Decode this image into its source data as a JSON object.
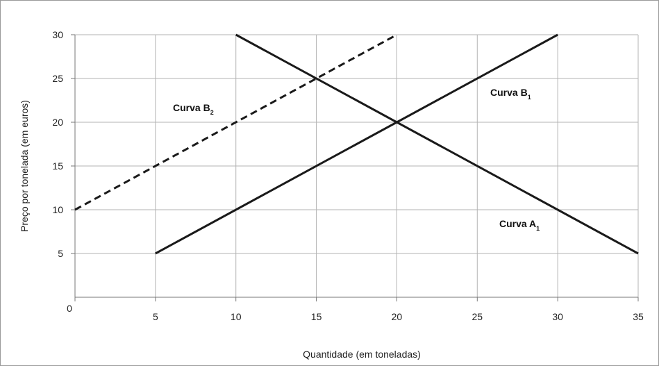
{
  "chart_data": {
    "type": "line",
    "xlabel": "Quantidade (em toneladas)",
    "ylabel": "Preço por tonelada (em euros)",
    "xlim": [
      0,
      35
    ],
    "ylim": [
      0,
      30
    ],
    "x_ticks": [
      "0",
      "5",
      "10",
      "15",
      "20",
      "25",
      "30",
      "35"
    ],
    "y_ticks": [
      "5",
      "10",
      "15",
      "20",
      "25",
      "30"
    ],
    "grid": true,
    "series": [
      {
        "name": "Curva A₁",
        "label_main": "Curva A",
        "label_sub": "1",
        "style": "solid",
        "points": [
          [
            10,
            30
          ],
          [
            35,
            5
          ]
        ]
      },
      {
        "name": "Curva B₁",
        "label_main": "Curva B",
        "label_sub": "1",
        "style": "solid",
        "points": [
          [
            5,
            5
          ],
          [
            30,
            30
          ]
        ]
      },
      {
        "name": "Curva B₂",
        "label_main": "Curva B",
        "label_sub": "2",
        "style": "dashed",
        "points": [
          [
            0,
            10
          ],
          [
            20,
            30
          ]
        ]
      }
    ]
  }
}
